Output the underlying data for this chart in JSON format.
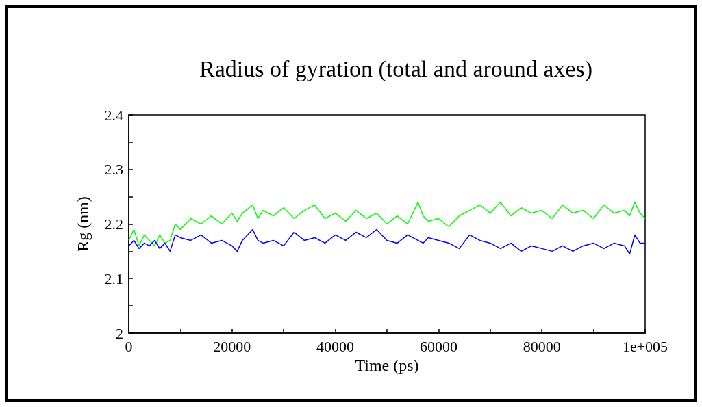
{
  "chart_data": {
    "type": "line",
    "title": "Radius of gyration (total and around axes)",
    "xlabel": "Time (ps)",
    "ylabel": "Rg (nm)",
    "x": [
      0,
      1000,
      2000,
      3000,
      4000,
      5000,
      6000,
      7000,
      8000,
      9000,
      10000,
      12000,
      14000,
      16000,
      18000,
      20000,
      21000,
      22000,
      24000,
      25000,
      26000,
      28000,
      30000,
      32000,
      34000,
      36000,
      38000,
      40000,
      42000,
      44000,
      46000,
      48000,
      50000,
      52000,
      54000,
      56000,
      57000,
      58000,
      60000,
      62000,
      64000,
      66000,
      68000,
      70000,
      72000,
      74000,
      76000,
      78000,
      80000,
      82000,
      84000,
      86000,
      88000,
      90000,
      92000,
      94000,
      96000,
      97000,
      98000,
      99000,
      100000
    ],
    "series": [
      {
        "color": "#00ff00",
        "values": [
          2.17,
          2.19,
          2.16,
          2.18,
          2.17,
          2.16,
          2.18,
          2.165,
          2.17,
          2.2,
          2.19,
          2.21,
          2.2,
          2.215,
          2.2,
          2.22,
          2.205,
          2.22,
          2.235,
          2.21,
          2.225,
          2.215,
          2.23,
          2.21,
          2.225,
          2.235,
          2.21,
          2.22,
          2.205,
          2.225,
          2.21,
          2.22,
          2.2,
          2.215,
          2.2,
          2.24,
          2.215,
          2.205,
          2.21,
          2.195,
          2.215,
          2.225,
          2.235,
          2.22,
          2.24,
          2.215,
          2.23,
          2.22,
          2.225,
          2.21,
          2.235,
          2.22,
          2.225,
          2.21,
          2.235,
          2.22,
          2.225,
          2.215,
          2.24,
          2.22,
          2.21
        ]
      },
      {
        "color": "#0000ff",
        "values": [
          2.16,
          2.17,
          2.155,
          2.165,
          2.16,
          2.17,
          2.155,
          2.165,
          2.15,
          2.18,
          2.175,
          2.17,
          2.18,
          2.165,
          2.17,
          2.16,
          2.15,
          2.17,
          2.19,
          2.17,
          2.165,
          2.17,
          2.16,
          2.185,
          2.17,
          2.175,
          2.165,
          2.18,
          2.17,
          2.185,
          2.175,
          2.19,
          2.17,
          2.165,
          2.18,
          2.17,
          2.165,
          2.175,
          2.17,
          2.165,
          2.155,
          2.18,
          2.17,
          2.165,
          2.155,
          2.165,
          2.15,
          2.16,
          2.155,
          2.15,
          2.16,
          2.15,
          2.16,
          2.165,
          2.155,
          2.165,
          2.16,
          2.145,
          2.18,
          2.165,
          2.165
        ]
      }
    ],
    "xlim": [
      0,
      100000
    ],
    "ylim": [
      2,
      2.4
    ],
    "xticks": [
      0,
      {
        "value": 10000,
        "label": null
      },
      20000,
      {
        "value": 30000,
        "label": null
      },
      40000,
      {
        "value": 50000,
        "label": null
      },
      60000,
      {
        "value": 70000,
        "label": null
      },
      80000,
      {
        "value": 90000,
        "label": null
      },
      {
        "value": 100000,
        "label": "1e+005"
      }
    ],
    "yticks": [
      2,
      {
        "value": 2.05,
        "label": null
      },
      2.1,
      {
        "value": 2.15,
        "label": null
      },
      2.2,
      {
        "value": 2.25,
        "label": null
      },
      2.3,
      {
        "value": 2.35,
        "label": null
      },
      2.4
    ],
    "grid": false,
    "marker": "none",
    "line_style": "solid"
  }
}
